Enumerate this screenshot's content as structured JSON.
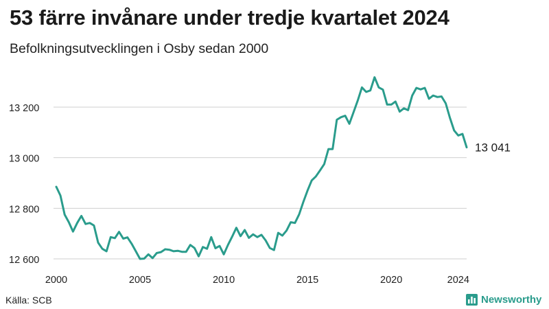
{
  "title": "53 färre invånare under tredje kvartalet 2024",
  "subtitle": "Befolkningsutvecklingen i Osby sedan 2000",
  "source": "Källa: SCB",
  "brand": {
    "name": "Newsworthy",
    "color": "#2a9c8c"
  },
  "chart_data": {
    "type": "line",
    "grid": true,
    "ylim": [
      12600,
      13200
    ],
    "y_ticks": [
      12600,
      12800,
      13000,
      13200
    ],
    "y_tick_labels": [
      "12 600",
      "12 800",
      "13 000",
      "13 200"
    ],
    "x_ticks": [
      2000,
      2005,
      2010,
      2015,
      2020,
      2024
    ],
    "x_tick_labels": [
      "2000",
      "2005",
      "2010",
      "2015",
      "2020",
      "2024"
    ],
    "line_color": "#2a9c8c",
    "end_label": "13 041",
    "series": [
      {
        "x": [
          2000.0,
          2000.25,
          2000.5,
          2000.75,
          2001.0,
          2001.25,
          2001.5,
          2001.75,
          2002.0,
          2002.25,
          2002.5,
          2002.75,
          2003.0,
          2003.25,
          2003.5,
          2003.75,
          2004.0,
          2004.25,
          2004.5,
          2004.75,
          2005.0,
          2005.25,
          2005.5,
          2005.75,
          2006.0,
          2006.25,
          2006.5,
          2006.75,
          2007.0,
          2007.25,
          2007.5,
          2007.75,
          2008.0,
          2008.25,
          2008.5,
          2008.75,
          2009.0,
          2009.25,
          2009.5,
          2009.75,
          2010.0,
          2010.25,
          2010.5,
          2010.75,
          2011.0,
          2011.25,
          2011.5,
          2011.75,
          2012.0,
          2012.25,
          2012.5,
          2012.75,
          2013.0,
          2013.25,
          2013.5,
          2013.75,
          2014.0,
          2014.25,
          2014.5,
          2014.75,
          2015.0,
          2015.25,
          2015.5,
          2015.75,
          2016.0,
          2016.25,
          2016.5,
          2016.75,
          2017.0,
          2017.25,
          2017.5,
          2017.75,
          2018.0,
          2018.25,
          2018.5,
          2018.75,
          2019.0,
          2019.25,
          2019.5,
          2019.75,
          2020.0,
          2020.25,
          2020.5,
          2020.75,
          2021.0,
          2021.25,
          2021.5,
          2021.75,
          2022.0,
          2022.25,
          2022.5,
          2022.75,
          2023.0,
          2023.25,
          2023.5,
          2023.75,
          2024.0,
          2024.25,
          2024.5
        ],
        "values": [
          12885,
          12850,
          12775,
          12745,
          12708,
          12742,
          12770,
          12738,
          12742,
          12732,
          12664,
          12640,
          12630,
          12686,
          12682,
          12707,
          12680,
          12685,
          12660,
          12630,
          12600,
          12601,
          12618,
          12603,
          12623,
          12627,
          12638,
          12636,
          12630,
          12632,
          12628,
          12628,
          12655,
          12643,
          12610,
          12647,
          12640,
          12686,
          12642,
          12651,
          12618,
          12655,
          12688,
          12723,
          12690,
          12714,
          12683,
          12697,
          12686,
          12695,
          12673,
          12643,
          12635,
          12703,
          12692,
          12712,
          12745,
          12742,
          12776,
          12825,
          12870,
          12910,
          12926,
          12950,
          12975,
          13034,
          13034,
          13150,
          13160,
          13166,
          13134,
          13180,
          13226,
          13278,
          13260,
          13266,
          13318,
          13278,
          13269,
          13210,
          13210,
          13222,
          13182,
          13195,
          13188,
          13246,
          13276,
          13270,
          13276,
          13233,
          13246,
          13240,
          13242,
          13215,
          13158,
          13108,
          13088,
          13094,
          13041
        ]
      }
    ]
  }
}
